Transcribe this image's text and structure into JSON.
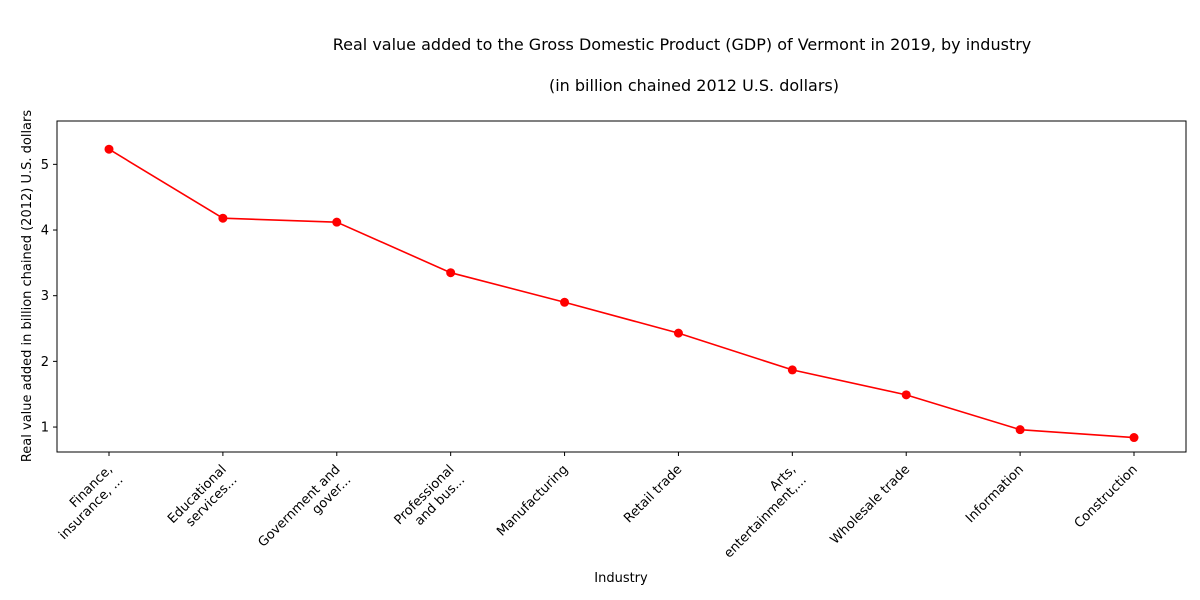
{
  "chart_data": {
    "type": "line",
    "title": "Real value added to the Gross Domestic Product (GDP) of Vermont in 2019, by industry",
    "subtitle": "(in billion chained 2012 U.S. dollars)",
    "xlabel": "Industry",
    "ylabel": "Real value added in billion chained (2012) U.S. dollars",
    "categories": [
      "Finance,\ninsurance, ...",
      "Educational\nservices...",
      "Government and\ngover...",
      "Professional\nand bus...",
      "Manufacturing",
      "Retail trade",
      "Arts,\nentertainment,...",
      "Wholesale trade",
      "Information",
      "Construction"
    ],
    "values": [
      5.23,
      4.18,
      4.12,
      3.35,
      2.9,
      2.43,
      1.87,
      1.49,
      0.96,
      0.84
    ],
    "ylim": [
      0.62,
      5.66
    ],
    "yticks": [
      1,
      2,
      3,
      4,
      5
    ],
    "grid": false,
    "colors": {
      "line": "#ff0000",
      "marker": "#ff0000"
    }
  }
}
